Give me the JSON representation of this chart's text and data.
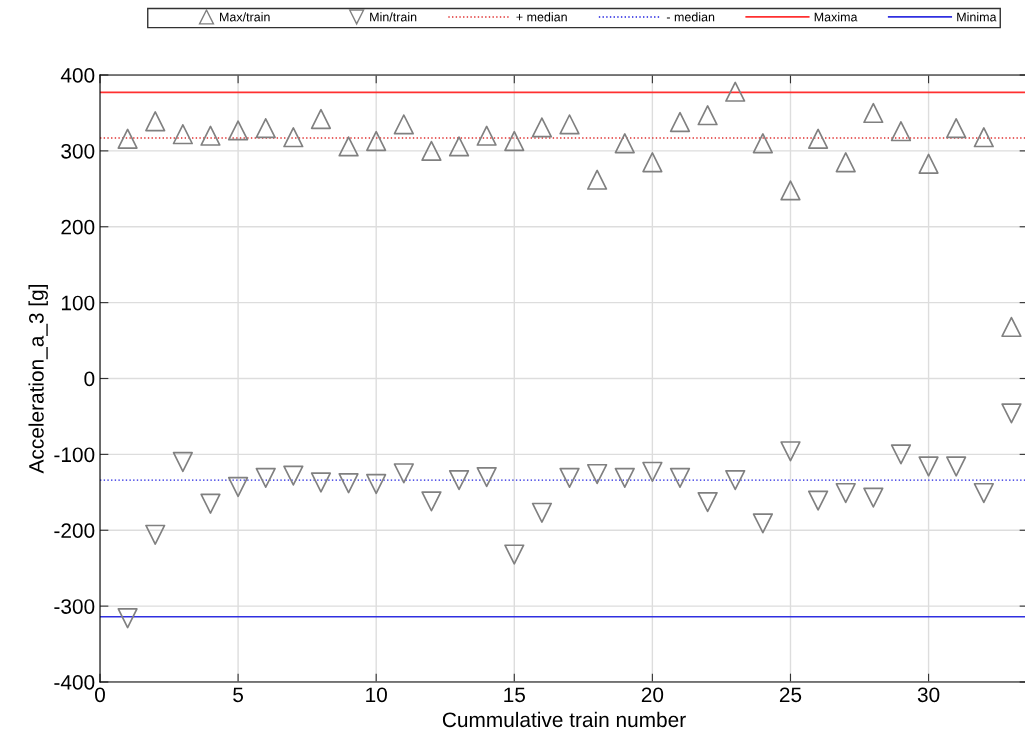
{
  "chart_data": {
    "type": "scatter",
    "xlabel": "Cummulative train number",
    "ylabel": "Acceleration_a_3 [g]",
    "x": [
      1,
      2,
      3,
      4,
      5,
      6,
      7,
      8,
      9,
      10,
      11,
      12,
      13,
      14,
      15,
      16,
      17,
      18,
      19,
      20,
      21,
      22,
      23,
      24,
      25,
      26,
      27,
      28,
      29,
      30,
      31,
      32,
      33
    ],
    "series": [
      {
        "name": "Max/train",
        "color": "#808080",
        "marker": "triangle",
        "values": [
          316,
          339,
          322,
          320,
          327,
          330,
          318,
          342,
          306,
          313,
          335,
          300,
          306,
          320,
          313,
          331,
          335,
          262,
          310,
          285,
          338,
          347,
          378,
          310,
          248,
          316,
          285,
          350,
          326,
          283,
          330,
          318,
          68
        ]
      },
      {
        "name": "Min/train",
        "color": "#808080",
        "marker": "triangle_down",
        "values": [
          -316,
          -206,
          -110,
          -165,
          -143,
          -131,
          -128,
          -137,
          -138,
          -139,
          -125,
          -162,
          -134,
          -130,
          -232,
          -177,
          -131,
          -126,
          -131,
          -123,
          -131,
          -163,
          -134,
          -191,
          -96,
          -161,
          -151,
          -157,
          -100,
          -116,
          -116,
          -151,
          -46
        ]
      }
    ],
    "ref_lines": [
      {
        "axis": "y",
        "value": 317,
        "label": "+ median",
        "color": "#e03030",
        "line_style": "dotted"
      },
      {
        "axis": "y",
        "value": -134,
        "label": "- median",
        "color": "#2020e0",
        "line_style": "dotted"
      },
      {
        "axis": "y",
        "value": 377,
        "label": "Maxima",
        "color": "#ff3030",
        "line_style": "solid"
      },
      {
        "axis": "y",
        "value": -314,
        "label": "Minima",
        "color": "#3030e0",
        "line_style": "solid"
      }
    ],
    "xlim": [
      0,
      33.6
    ],
    "ylim": [
      -400,
      400
    ],
    "xticks": [
      0,
      5,
      10,
      15,
      20,
      25,
      30
    ],
    "yticks": [
      -400,
      -300,
      -200,
      -100,
      0,
      100,
      200,
      300,
      400
    ],
    "grid": true,
    "legend": "top"
  }
}
